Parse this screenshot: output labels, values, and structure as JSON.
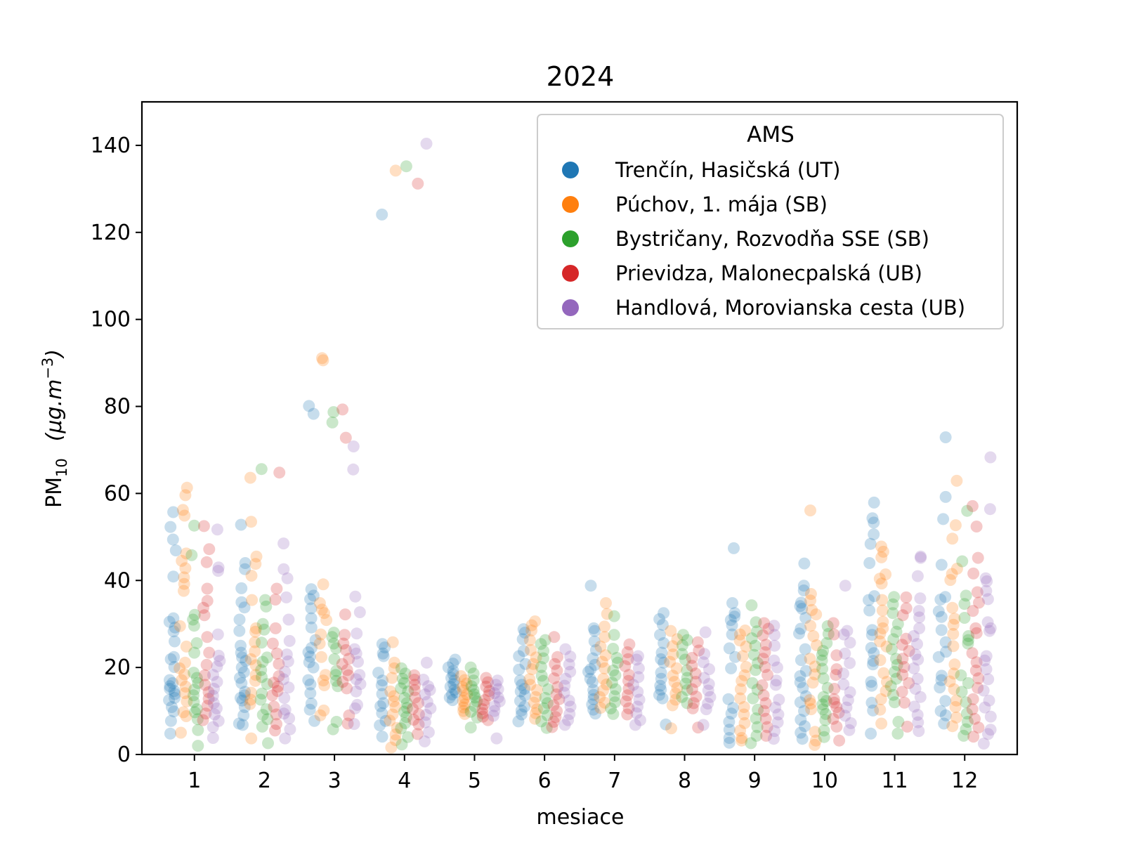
{
  "chart_data": {
    "type": "scatter",
    "title": "2024",
    "xlabel": "mesiace",
    "ylabel": {
      "main": "PM",
      "sub": "10",
      "unit_open": "(",
      "unit_body": "μg.m",
      "unit_sup": "−3",
      "unit_close": ")"
    },
    "x_categories": [
      "1",
      "2",
      "3",
      "4",
      "5",
      "6",
      "7",
      "8",
      "9",
      "10",
      "11",
      "12"
    ],
    "ylim": [
      0,
      150
    ],
    "yticks": [
      0,
      20,
      40,
      60,
      80,
      100,
      120,
      140
    ],
    "grid": false,
    "legend": {
      "title": "AMS",
      "placement": "top-right"
    },
    "point_alpha": 0.25,
    "series": [
      {
        "name": "Trenčín, Hasičská  (UT)",
        "color": "#1f77b4",
        "values": [
          [
            55.7,
            52.3,
            49.4,
            46.9,
            40.9,
            31.3,
            30.5,
            29.2,
            28.3,
            26.0,
            22.4,
            21.9,
            20.1,
            17.1,
            16.4,
            15.7,
            15.1,
            14.6,
            13.9,
            13.0,
            12.5,
            10.9,
            9.9,
            7.7,
            4.8
          ],
          [
            52.8,
            44.0,
            42.6,
            38.2,
            35.0,
            33.8,
            31.0,
            28.4,
            25.0,
            23.4,
            22.3,
            21.5,
            20.0,
            18.9,
            17.6,
            16.4,
            14.4,
            13.6,
            13.0,
            12.4,
            10.9,
            9.0,
            7.1,
            6.8
          ],
          [
            80.1,
            78.3,
            38.0,
            36.5,
            35.7,
            33.6,
            31.3,
            29.2,
            26.3,
            24.5,
            23.5,
            22.5,
            21.2,
            20.0,
            17.1,
            16.1,
            14.1,
            11.7,
            10.3,
            7.7
          ],
          [
            124.1,
            25.4,
            24.6,
            23.2,
            22.6,
            18.8,
            17.0,
            15.9,
            13.9,
            11.8,
            11.1,
            9.5,
            7.7,
            6.7,
            4.1
          ],
          [
            21.8,
            20.9,
            20.0,
            19.2,
            18.4,
            17.6,
            17.0,
            16.2,
            15.6,
            14.9,
            14.3,
            13.8,
            13.1,
            12.5
          ],
          [
            28.8,
            28.0,
            26.5,
            23.8,
            22.6,
            20.8,
            19.5,
            17.0,
            16.0,
            15.1,
            14.5,
            13.6,
            12.3,
            11.0,
            10.1,
            9.2,
            7.6
          ],
          [
            38.8,
            29.0,
            28.4,
            26.0,
            24.0,
            22.1,
            20.6,
            19.6,
            19.0,
            17.4,
            16.6,
            14.8,
            13.7,
            12.7,
            11.5,
            10.3,
            9.4
          ],
          [
            32.5,
            31.1,
            29.8,
            27.5,
            25.6,
            23.4,
            21.9,
            21.1,
            18.8,
            17.4,
            15.8,
            14.9,
            13.7,
            12.9,
            6.9
          ],
          [
            47.4,
            34.8,
            32.5,
            31.7,
            30.9,
            29.7,
            27.6,
            24.4,
            22.4,
            19.8,
            12.7,
            10.7,
            9.4,
            7.5,
            5.7,
            3.8,
            2.7
          ],
          [
            43.9,
            38.8,
            37.7,
            34.9,
            34.1,
            33.5,
            31.4,
            28.9,
            27.8,
            24.2,
            21.7,
            19.2,
            18.0,
            16.6,
            15.3,
            13.4,
            12.0,
            10.0,
            8.0,
            6.5,
            5.0,
            3.6
          ],
          [
            57.9,
            54.3,
            53.3,
            50.6,
            48.4,
            44.0,
            36.4,
            35.5,
            33.1,
            28.6,
            27.5,
            24.5,
            23.3,
            21.5,
            20.7,
            16.7,
            15.8,
            11.9,
            10.1,
            4.8
          ],
          [
            72.9,
            59.2,
            54.1,
            43.6,
            36.2,
            35.6,
            32.9,
            31.6,
            28.6,
            25.8,
            23.6,
            22.4,
            18.1,
            17.1,
            15.4,
            12.3,
            10.0,
            9.0,
            7.1
          ]
        ]
      },
      {
        "name": "Púchov, 1. mája (SB)",
        "color": "#ff7f0e",
        "values": [
          [
            61.3,
            59.6,
            56.2,
            54.9,
            46.2,
            44.5,
            42.8,
            40.7,
            39.2,
            37.6,
            29.5,
            24.8,
            21.1,
            19.8,
            18.4,
            17.1,
            15.6,
            14.1,
            12.2,
            9.7,
            8.8,
            5.0
          ],
          [
            63.6,
            53.5,
            45.5,
            43.8,
            41.1,
            35.5,
            29.0,
            28.2,
            25.8,
            23.7,
            21.9,
            20.5,
            18.3,
            16.9,
            14.2,
            12.6,
            11.6,
            3.7
          ],
          [
            91.1,
            90.6,
            39.1,
            34.8,
            33.3,
            32.5,
            30.9,
            27.6,
            25.5,
            22.4,
            18.3,
            17.0,
            15.9,
            10.1,
            9.0
          ],
          [
            134.2,
            25.8,
            21.1,
            19.8,
            17.6,
            14.5,
            13.4,
            12.2,
            10.9,
            9.2,
            7.8,
            6.1,
            4.6,
            3.3,
            1.6
          ],
          [
            18.0,
            17.1,
            16.3,
            15.5,
            14.7,
            13.8,
            13.0,
            12.3,
            11.5,
            10.8,
            10.0,
            9.3
          ],
          [
            30.6,
            29.7,
            28.5,
            26.3,
            24.0,
            22.3,
            20.8,
            19.6,
            17.3,
            16.0,
            14.8,
            13.2,
            11.9,
            10.4,
            9.5,
            8.2
          ],
          [
            34.8,
            32.3,
            29.4,
            27.0,
            24.8,
            22.8,
            21.3,
            19.8,
            17.4,
            16.1,
            14.7,
            13.2,
            11.9,
            10.7
          ],
          [
            28.4,
            26.5,
            24.9,
            23.0,
            21.3,
            19.8,
            18.1,
            16.7,
            15.3,
            14.0,
            12.6,
            11.3,
            6.0
          ],
          [
            28.5,
            27.6,
            26.2,
            24.8,
            22.6,
            20.1,
            18.2,
            16.9,
            15.0,
            12.9,
            10.9,
            9.2,
            7.2,
            5.5,
            3.8,
            3.2
          ],
          [
            56.1,
            36.9,
            35.4,
            33.2,
            32.2,
            29.6,
            27.2,
            25.1,
            22.0,
            20.2,
            18.4,
            16.5,
            12.5,
            11.7,
            10.4,
            5.2,
            3.2,
            2.2
          ],
          [
            47.8,
            46.6,
            45.3,
            41.4,
            40.4,
            39.3,
            35.5,
            33.1,
            30.5,
            29.0,
            27.8,
            26.0,
            24.8,
            21.7,
            18.7,
            16.7,
            14.6,
            12.7,
            10.3,
            7.1
          ],
          [
            62.9,
            52.7,
            49.6,
            42.7,
            41.5,
            40.1,
            33.7,
            31.2,
            29.8,
            27.7,
            24.9,
            20.7,
            18.6,
            16.8,
            15.0,
            12.4,
            10.9,
            8.5,
            6.5
          ]
        ]
      },
      {
        "name": "Bystričany, Rozvodňa SSE (SB)",
        "color": "#2ca02c",
        "values": [
          [
            52.6,
            45.8,
            32.1,
            31.0,
            29.6,
            25.6,
            23.4,
            18.8,
            17.6,
            16.4,
            14.9,
            13.6,
            12.1,
            10.4,
            9.7,
            8.1,
            5.6,
            2.0
          ],
          [
            65.6,
            35.5,
            34.0,
            30.0,
            28.7,
            25.7,
            22.3,
            21.3,
            19.4,
            17.8,
            16.2,
            14.0,
            12.6,
            10.4,
            9.1,
            8.1,
            6.4,
            2.6
          ],
          [
            78.7,
            76.3,
            28.0,
            27.0,
            25.5,
            24.4,
            21.9,
            19.2,
            18.3,
            16.9,
            15.7,
            7.5,
            5.8
          ],
          [
            135.2,
            19.8,
            18.6,
            17.4,
            16.4,
            15.2,
            14.5,
            13.0,
            11.8,
            10.7,
            9.8,
            8.6,
            7.2,
            6.0,
            4.0,
            2.3
          ],
          [
            20.0,
            18.6,
            17.0,
            15.7,
            14.8,
            13.8,
            13.1,
            12.2,
            11.1,
            9.8,
            8.5,
            6.2
          ],
          [
            26.3,
            25.4,
            23.8,
            22.1,
            20.1,
            18.1,
            16.9,
            15.0,
            13.0,
            11.8,
            10.6,
            9.0,
            7.6,
            6.1
          ],
          [
            31.8,
            27.5,
            24.3,
            22.2,
            21.1,
            19.3,
            18.2,
            16.5,
            15.0,
            13.4,
            12.0,
            10.6,
            9.3
          ],
          [
            27.5,
            26.3,
            25.1,
            23.1,
            21.8,
            19.3,
            17.6,
            16.3,
            14.8,
            13.2,
            11.8
          ],
          [
            34.3,
            30.4,
            28.3,
            26.7,
            25.0,
            22.9,
            21.0,
            19.4,
            16.4,
            14.9,
            12.9,
            10.3,
            8.3,
            6.3,
            4.3,
            2.6
          ],
          [
            29.5,
            27.7,
            25.6,
            23.8,
            22.9,
            21.6,
            19.7,
            17.5,
            15.3,
            13.2,
            12.3,
            11.5,
            10.4,
            9.3,
            7.9,
            5.5,
            4.0
          ],
          [
            36.2,
            34.5,
            32.5,
            30.0,
            28.2,
            26.5,
            24.2,
            22.0,
            20.6,
            19.0,
            17.4,
            15.7,
            13.7,
            12.0,
            7.5,
            4.8
          ],
          [
            56.0,
            44.4,
            36.5,
            34.6,
            31.4,
            27.2,
            26.3,
            25.5,
            18.2,
            16.4,
            14.4,
            12.0,
            9.4,
            7.5,
            5.8,
            4.3
          ]
        ]
      },
      {
        "name": "Prievidza, Malonecpalská (UB)",
        "color": "#d62728",
        "values": [
          [
            52.5,
            47.2,
            44.2,
            38.1,
            35.3,
            33.7,
            32.0,
            27.0,
            23.4,
            20.6,
            18.2,
            16.0,
            14.3,
            12.8,
            11.2,
            9.4,
            7.9
          ],
          [
            64.8,
            38.1,
            35.6,
            29.0,
            25.5,
            23.2,
            20.8,
            18.0,
            16.5,
            15.6,
            14.6,
            13.6,
            11.0,
            9.2,
            7.0,
            5.5
          ],
          [
            79.3,
            72.8,
            32.2,
            27.5,
            25.5,
            24.0,
            22.0,
            20.8,
            19.4,
            18.2,
            16.7,
            15.2,
            9.0,
            7.1
          ],
          [
            131.2,
            18.2,
            17.2,
            16.0,
            14.8,
            13.1,
            11.8,
            10.5,
            9.2,
            8.0,
            6.9,
            4.7
          ],
          [
            17.6,
            16.6,
            15.6,
            14.6,
            13.6,
            12.5,
            11.5,
            10.4,
            9.5,
            8.7,
            7.9
          ],
          [
            27.0,
            22.4,
            20.8,
            19.3,
            17.5,
            15.5,
            13.8,
            12.7,
            11.3,
            10.0,
            8.6,
            7.5,
            6.3
          ],
          [
            25.3,
            23.5,
            21.9,
            20.3,
            18.3,
            16.9,
            15.1,
            13.6,
            12.2,
            10.6,
            9.2
          ],
          [
            25.8,
            23.9,
            22.2,
            20.4,
            18.6,
            16.7,
            15.0,
            13.3,
            11.8,
            10.6,
            6.2
          ],
          [
            30.2,
            28.9,
            27.4,
            25.2,
            23.5,
            22.0,
            20.1,
            18.3,
            15.9,
            13.6,
            11.8,
            10.0,
            8.2,
            6.3,
            4.3
          ],
          [
            30.2,
            27.6,
            22.8,
            19.6,
            18.3,
            15.1,
            12.7,
            11.9,
            10.9,
            9.6,
            8.2,
            6.4,
            3.2
          ],
          [
            36.1,
            33.6,
            32.0,
            26.6,
            25.2,
            23.8,
            22.0,
            20.1,
            18.3,
            16.4,
            14.4,
            11.9,
            6.4
          ],
          [
            57.1,
            52.4,
            45.2,
            41.6,
            37.3,
            34.9,
            33.0,
            29.0,
            27.9,
            23.3,
            21.2,
            19.3,
            17.5,
            15.3,
            12.7,
            10.4,
            8.2,
            6.2,
            4.1
          ]
        ]
      },
      {
        "name": "Handlová, Morovianska cesta (UB)",
        "color": "#9467bd",
        "values": [
          [
            51.7,
            43.0,
            42.2,
            27.6,
            22.7,
            21.5,
            20.2,
            18.3,
            16.7,
            15.1,
            13.5,
            11.8,
            10.6,
            9.2,
            7.7,
            6.3,
            3.8
          ],
          [
            48.5,
            42.6,
            40.5,
            36.1,
            31.0,
            26.1,
            23.0,
            21.4,
            19.0,
            17.3,
            15.4,
            13.0,
            10.3,
            9.4,
            8.3,
            5.8,
            3.7
          ],
          [
            70.8,
            65.5,
            36.3,
            32.7,
            27.8,
            24.2,
            23.2,
            21.3,
            18.3,
            17.3,
            16.2,
            14.5,
            11.4,
            10.6,
            7.0
          ],
          [
            140.4,
            21.1,
            17.2,
            15.7,
            14.8,
            13.8,
            12.1,
            10.6,
            9.1,
            7.4,
            5.1,
            3.0
          ],
          [
            17.0,
            16.0,
            15.0,
            14.1,
            13.1,
            12.2,
            11.1,
            10.0,
            8.9,
            3.7
          ],
          [
            24.2,
            22.5,
            20.7,
            19.0,
            17.4,
            15.8,
            14.2,
            12.4,
            11.0,
            9.3,
            7.9,
            6.8
          ],
          [
            22.6,
            21.8,
            19.8,
            17.8,
            16.0,
            14.4,
            12.6,
            11.0,
            9.5,
            7.9,
            6.8
          ],
          [
            28.1,
            23.1,
            21.2,
            19.6,
            17.6,
            16.2,
            14.7,
            13.2,
            11.7,
            10.4,
            6.8
          ],
          [
            29.6,
            27.5,
            25.0,
            21.6,
            20.0,
            17.0,
            16.0,
            12.6,
            10.8,
            9.2,
            7.4,
            5.4,
            3.6
          ],
          [
            38.8,
            28.4,
            27.6,
            25.7,
            23.2,
            21.0,
            18.6,
            16.1,
            14.3,
            12.5,
            10.8,
            8.9,
            7.2,
            5.6
          ],
          [
            45.5,
            45.2,
            41.0,
            35.9,
            33.0,
            31.5,
            29.0,
            27.2,
            25.4,
            23.0,
            21.8,
            19.8,
            17.4,
            15.1,
            13.2,
            11.0,
            9.1,
            7.4,
            5.4
          ],
          [
            68.3,
            56.4,
            40.5,
            39.8,
            37.6,
            35.7,
            30.4,
            29.0,
            28.4,
            22.6,
            21.6,
            19.6,
            17.3,
            14.7,
            12.4,
            10.8,
            8.7,
            5.7,
            4.7,
            2.5
          ]
        ]
      }
    ]
  }
}
